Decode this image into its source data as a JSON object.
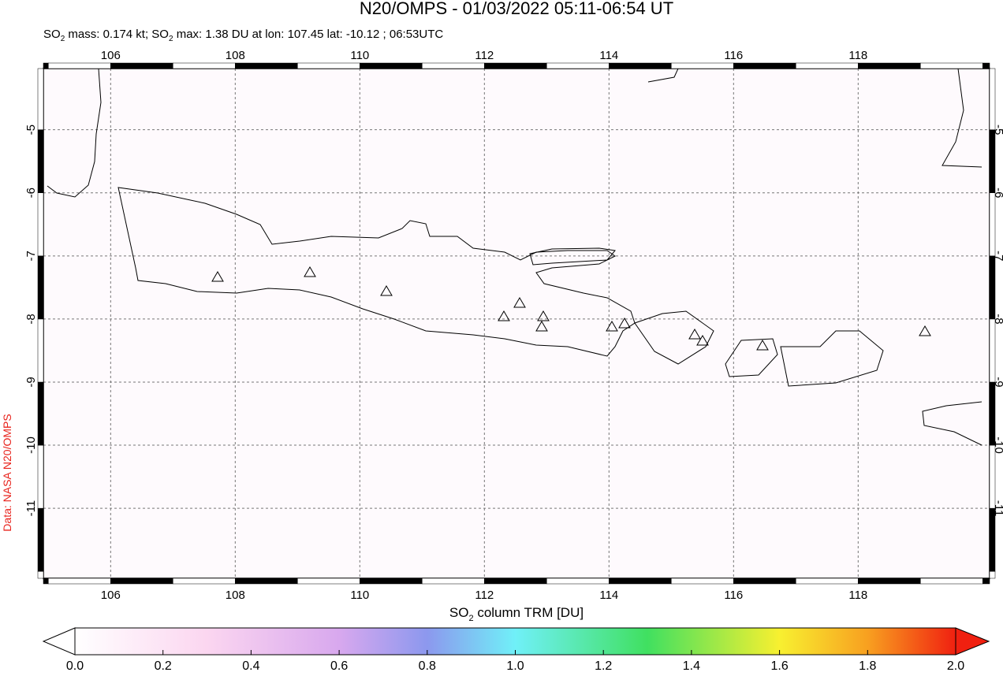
{
  "map": {
    "title": "N20/OMPS - 01/03/2022 05:11-06:54 UT",
    "subtitle": [
      "SO",
      "2",
      " mass: 0.174 kt; SO",
      "2",
      " max: 1.38 DU at lon: 107.45 lat: -10.12 ; 06:53UTC"
    ],
    "xlim": [
      104.92,
      120.11
    ],
    "ylim": [
      -12.11,
      -4.03
    ],
    "xticks": [
      106,
      108,
      110,
      112,
      114,
      116,
      118
    ],
    "yticks": [
      -11,
      -10,
      -9,
      -8,
      -7,
      -6,
      -5
    ],
    "credit": "Data: NASA N20/OMPS"
  },
  "colorbar": {
    "label": [
      "SO",
      "2",
      " column TRM [DU]"
    ],
    "lim": [
      0,
      2
    ],
    "ticks": [
      {
        "value": 0,
        "label": "0.0"
      },
      {
        "value": 0.2,
        "label": "0.2"
      },
      {
        "value": 0.4,
        "label": "0.4"
      },
      {
        "value": 0.6,
        "label": "0.6"
      },
      {
        "value": 0.8,
        "label": "0.8"
      },
      {
        "value": 1,
        "label": "1.0"
      },
      {
        "value": 1.2,
        "label": "1.2"
      },
      {
        "value": 1.4,
        "label": "1.4"
      },
      {
        "value": 1.6,
        "label": "1.6"
      },
      {
        "value": 1.8,
        "label": "1.8"
      },
      {
        "value": 2,
        "label": "2.0"
      }
    ]
  }
}
